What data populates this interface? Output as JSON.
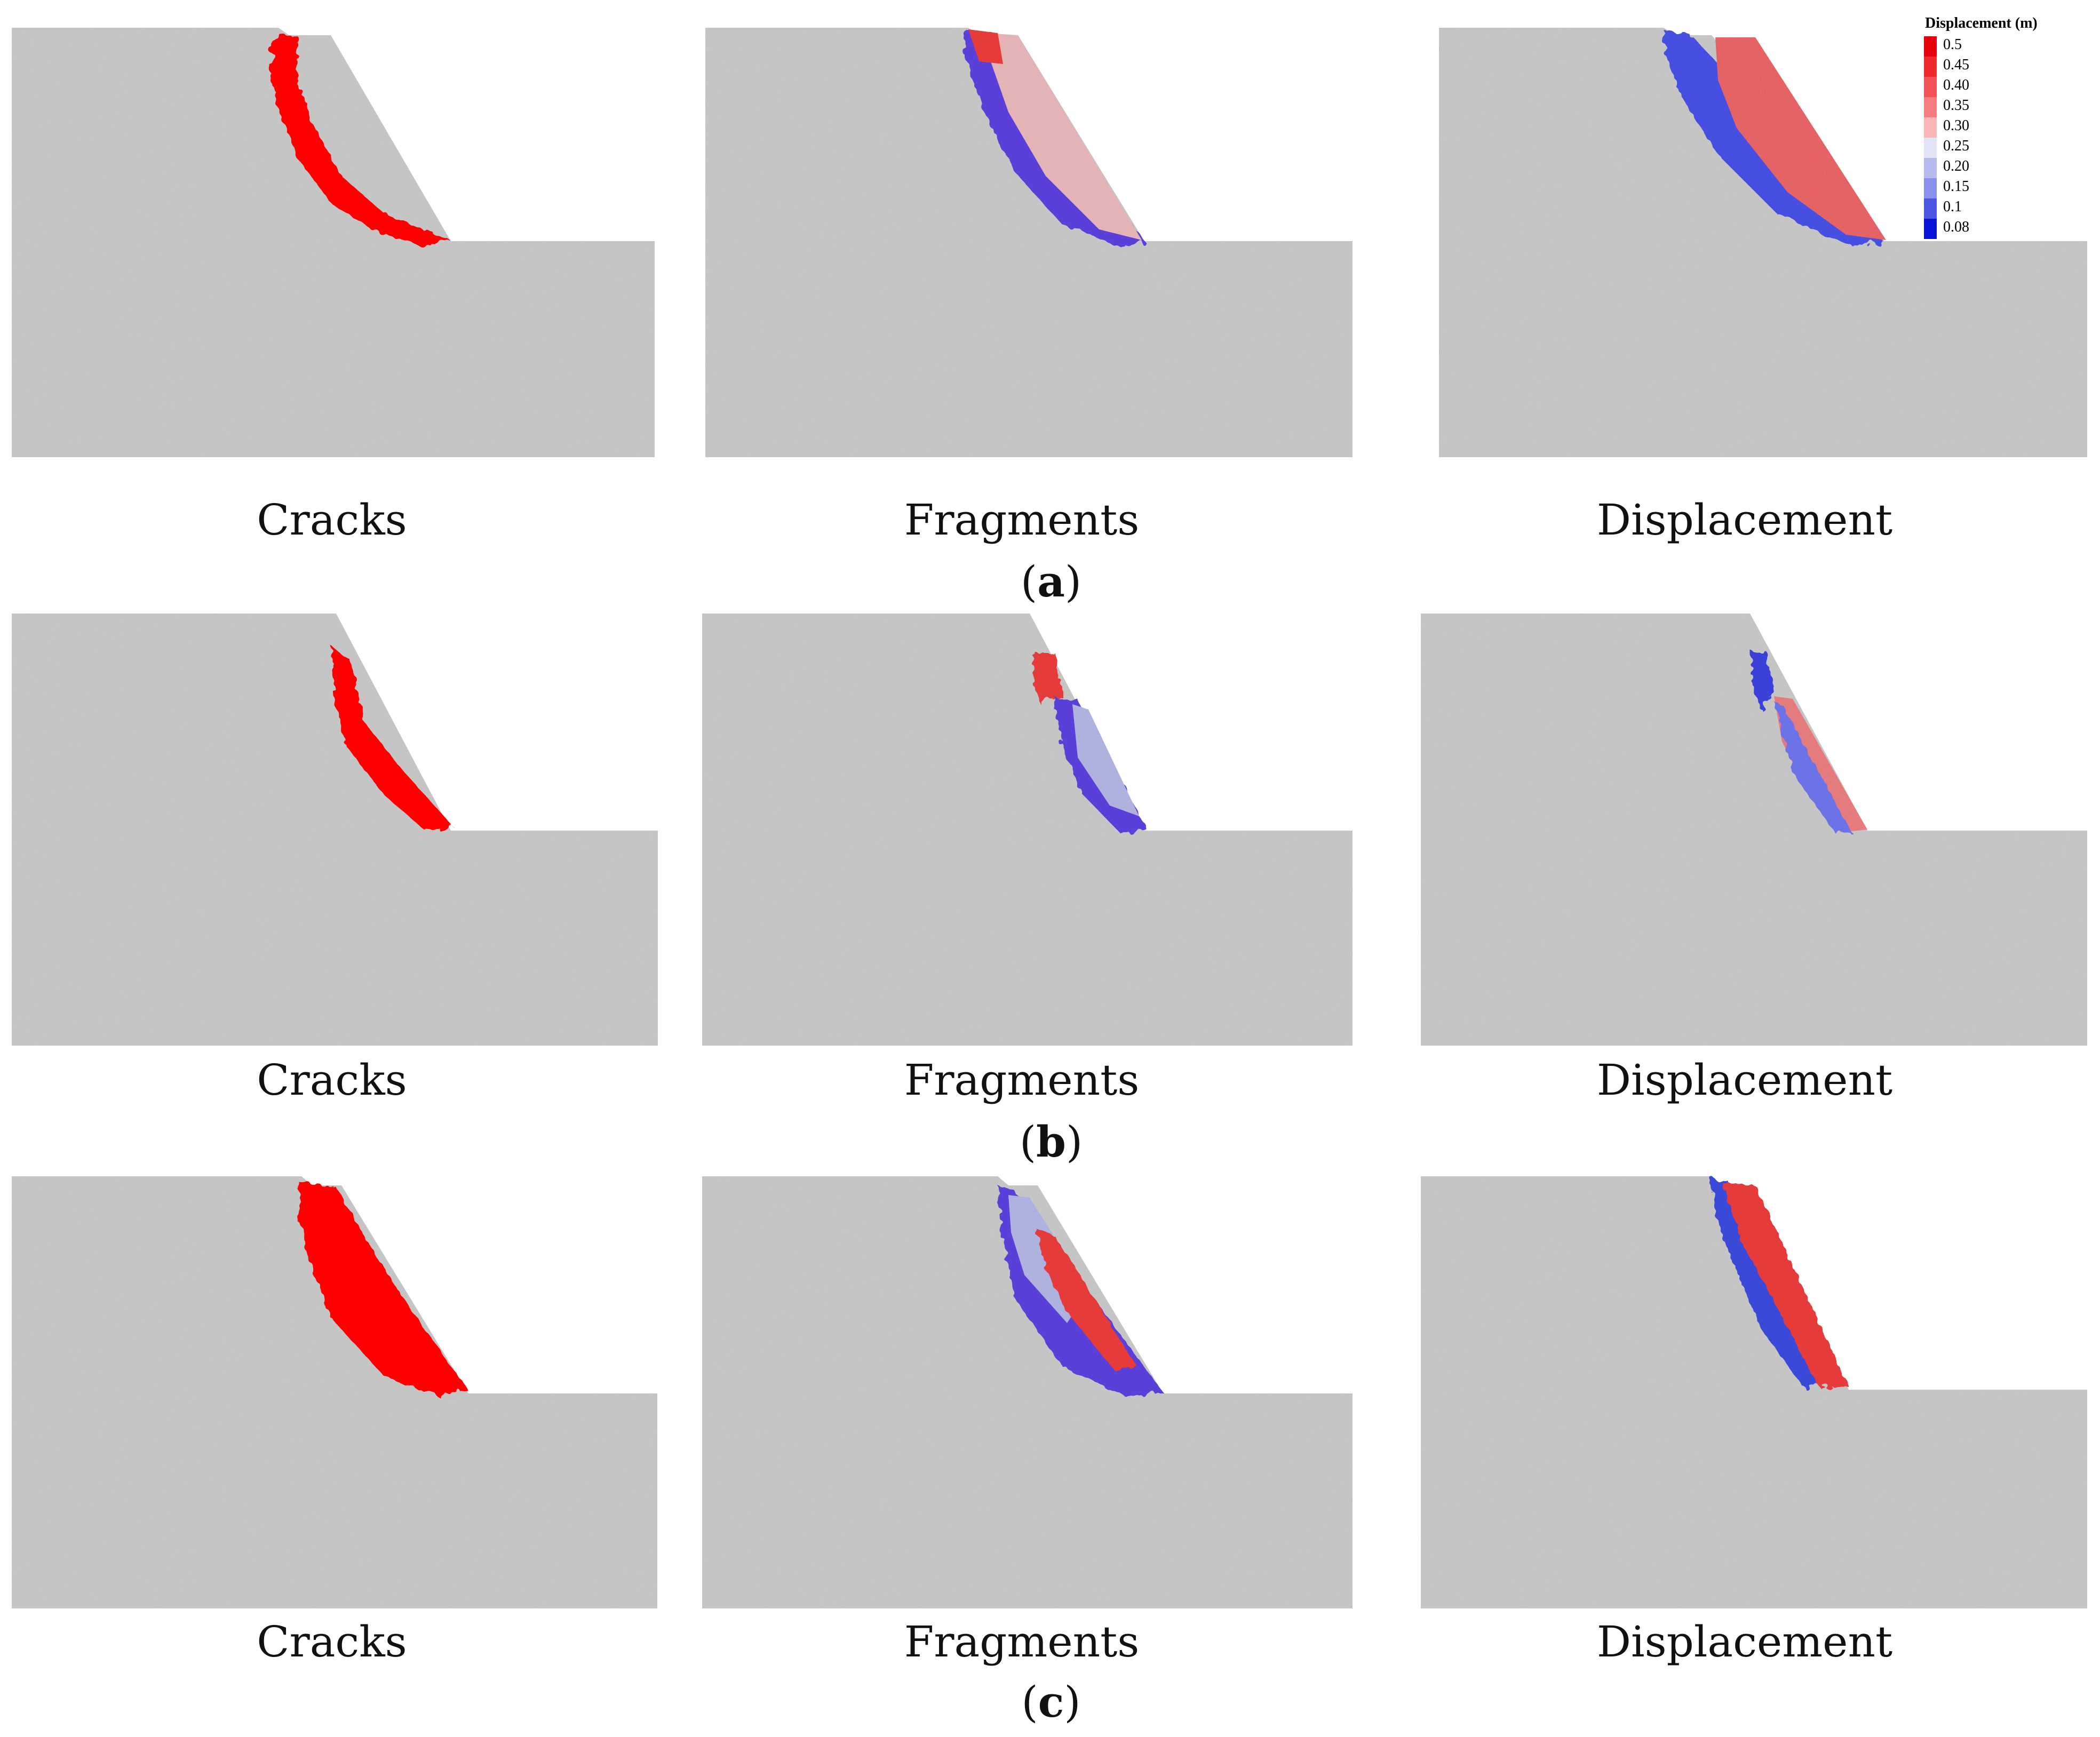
{
  "panels": [
    {
      "label_open": "(",
      "label_letter": "a",
      "label_close": ")",
      "captions": [
        "Cracks",
        "Fragments",
        "Displacement"
      ]
    },
    {
      "label_open": "(",
      "label_letter": "b",
      "label_close": ")",
      "captions": [
        "Cracks",
        "Fragments",
        "Displacement"
      ]
    },
    {
      "label_open": "(",
      "label_letter": "c",
      "label_close": ")",
      "captions": [
        "Cracks",
        "Fragments",
        "Displacement"
      ]
    }
  ],
  "legend": {
    "title": "Displacement (m)",
    "items": [
      {
        "value": "0.5",
        "color": "#e8000c"
      },
      {
        "value": "0.45",
        "color": "#ee2a2f"
      },
      {
        "value": "0.40",
        "color": "#f25357"
      },
      {
        "value": "0.35",
        "color": "#f57d80"
      },
      {
        "value": "0.30",
        "color": "#f9b6b7"
      },
      {
        "value": "0.25",
        "color": "#e2e4f6"
      },
      {
        "value": "0.20",
        "color": "#b7bcf0"
      },
      {
        "value": "0.15",
        "color": "#8a91ea"
      },
      {
        "value": "0.1",
        "color": "#4b55e4"
      },
      {
        "value": "0.08",
        "color": "#0a14d8"
      }
    ]
  },
  "colors": {
    "background": "#ffffff",
    "rock": "#c6c6c6",
    "crack": "#ff0000",
    "fragment_red": "#e53b3b",
    "fragment_pink": "#e3b3b6",
    "fragment_blue": "#5a40d8",
    "fragment_lightblue": "#aeb2de"
  }
}
